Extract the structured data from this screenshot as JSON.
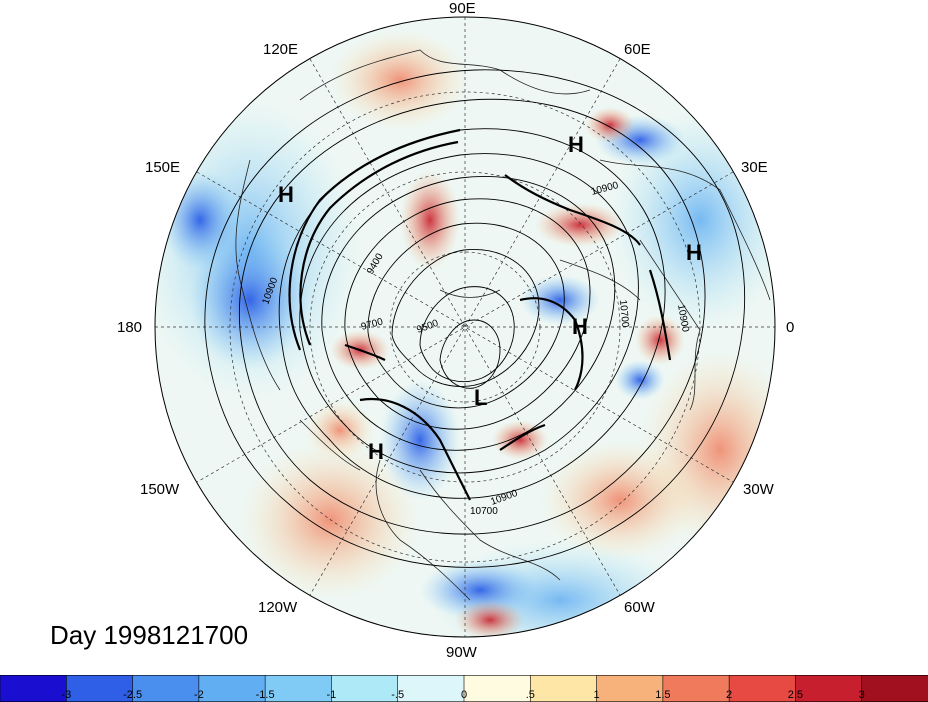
{
  "longitude_labels": [
    "90E",
    "60E",
    "30E",
    "0",
    "30W",
    "60W",
    "90W",
    "120W",
    "150W",
    "180",
    "150E",
    "120E"
  ],
  "pressure_centers": [
    "H",
    "H",
    "H",
    "H",
    "H",
    "L"
  ],
  "contour_labels": [
    "10900",
    "10900",
    "10900",
    "10900",
    "9700",
    "9500",
    "9400",
    "10700",
    "10700"
  ],
  "date_label": "Day 1998121700",
  "colorbar": {
    "ticks": [
      "-3",
      "-2.5",
      "-2",
      "-1.5",
      "-1",
      "-.5",
      "0",
      ".5",
      "1",
      "1.5",
      "2",
      "2.5",
      "3"
    ],
    "colors": [
      "#1a0fd0",
      "#2e5fe6",
      "#4a8fee",
      "#62aef2",
      "#80cbf5",
      "#aee9f7",
      "#dcf6fa",
      "#fffbe0",
      "#fde6a6",
      "#f6b27a",
      "#ef7a5c",
      "#e64a43",
      "#c81f2e",
      "#a0101f"
    ]
  },
  "colors": {
    "background_field": "#f4f0e6",
    "contour": "#000000"
  }
}
